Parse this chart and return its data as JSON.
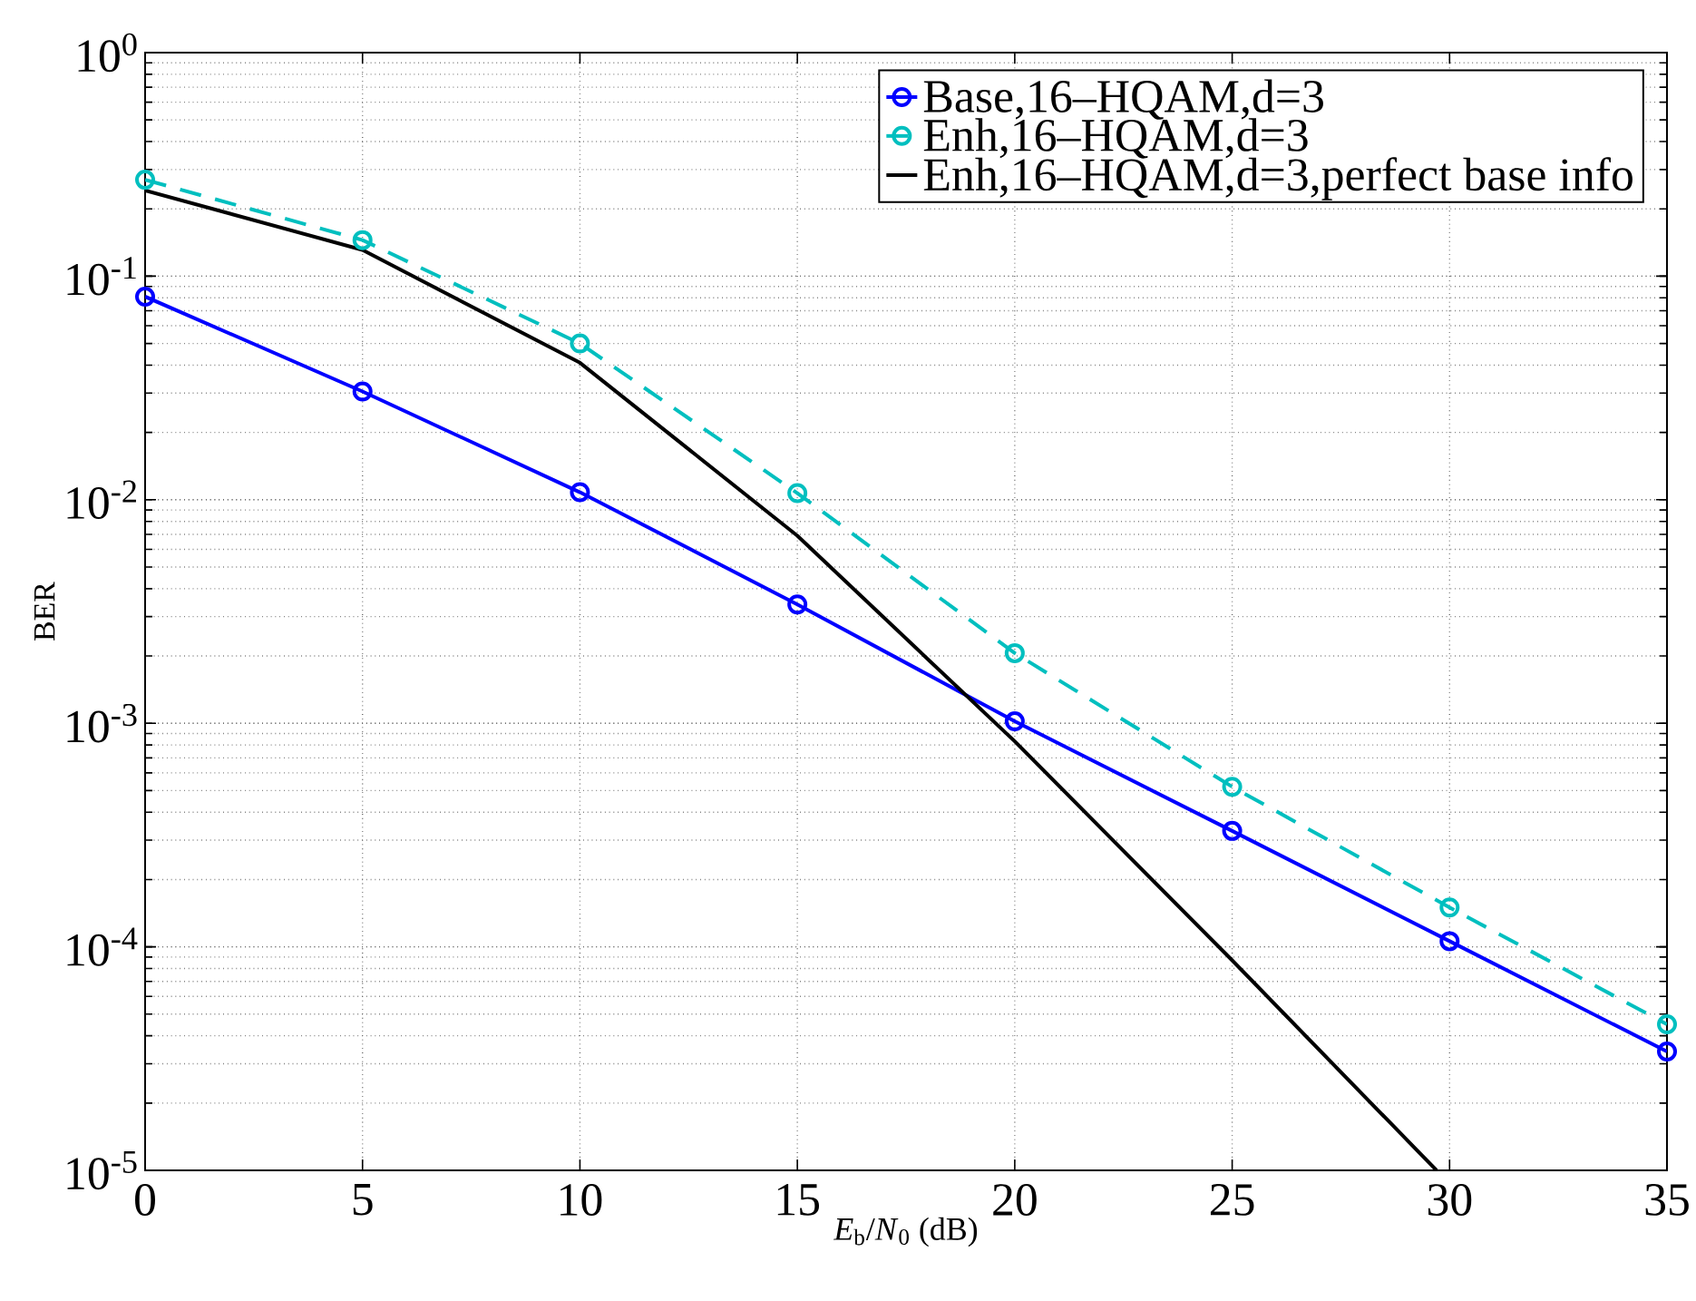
{
  "chart_data": {
    "type": "line",
    "xlabel": "*E*$_{b}$/*N*$_{0}$ (dB)",
    "ylabel": "BER",
    "x": [
      0,
      5,
      10,
      15,
      20,
      25,
      30,
      35
    ],
    "xlim": [
      0,
      35
    ],
    "xticks": [
      0,
      5,
      10,
      15,
      20,
      25,
      30,
      35
    ],
    "ylim": [
      1e-05,
      1
    ],
    "log": "y",
    "yticks": [
      {
        "value": 1e-05,
        "label": "10$^{-5}$"
      },
      {
        "value": 0.0001,
        "label": "10$^{-4}$"
      },
      {
        "value": 0.001,
        "label": "10$^{-3}$"
      },
      {
        "value": 0.01,
        "label": "10$^{-2}$"
      },
      {
        "value": 0.1,
        "label": "10$^{-1}$"
      },
      {
        "value": 1,
        "label": "10$^{0}$"
      }
    ],
    "grid": true,
    "legend": "top right",
    "series": [
      {
        "name": "Base,16–HQAM,d=3",
        "color": "#0000ff",
        "marker": "circle",
        "line_style": "solid",
        "values": [
          0.081,
          0.0305,
          0.0108,
          0.0034,
          0.00102,
          0.00033,
          0.000106,
          3.4e-05
        ]
      },
      {
        "name": "Enh,16–HQAM,d=3",
        "color": "#00bfbf",
        "marker": "circle",
        "line_style": "dashed",
        "values": [
          0.27,
          0.145,
          0.05,
          0.0107,
          0.00206,
          0.00052,
          0.00015,
          4.5e-05
        ]
      },
      {
        "name": "Enh,16–HQAM,d=3,perfect base info",
        "color": "#000000",
        "marker": "none",
        "line_style": "solid",
        "x": [
          0,
          5,
          10,
          15,
          20,
          25,
          29.7
        ],
        "values": [
          0.242,
          0.131,
          0.041,
          0.0069,
          0.00083,
          8.7e-05,
          1e-05
        ]
      }
    ]
  }
}
